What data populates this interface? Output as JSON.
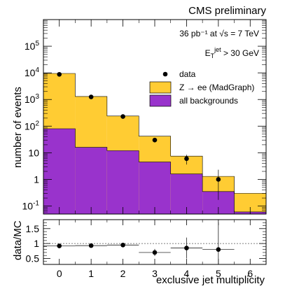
{
  "chart_data": [
    {
      "type": "bar",
      "title": "CMS preliminary",
      "annotations": {
        "lumi": "36 pb⁻¹  at √s = 7 TeV",
        "cut": "E_T^jet > 30 GeV"
      },
      "ylabel": "number of events",
      "xlabel": "",
      "yscale": "log",
      "ylim": [
        0.05,
        1000000
      ],
      "xlim": [
        -0.5,
        6.5
      ],
      "y_ticks": [
        "10⁻¹",
        "1",
        "10",
        "10²",
        "10³",
        "10⁴",
        "10⁵"
      ],
      "x_ticks": [
        "0",
        "1",
        "2",
        "3",
        "4",
        "5",
        "6"
      ],
      "categories": [
        0,
        1,
        2,
        3,
        4,
        5,
        6
      ],
      "series": [
        {
          "name": "Z → ee (MadGraph)",
          "type": "stacked-hist",
          "color": "#ffcc33",
          "values": [
            9500,
            1300,
            240,
            42,
            7.5,
            1.3,
            0.3
          ]
        },
        {
          "name": "all backgrounds",
          "type": "hist",
          "color": "#9933cc",
          "values": [
            80,
            16,
            12,
            4.5,
            1.6,
            0.35,
            0.06
          ]
        },
        {
          "name": "data",
          "type": "points",
          "color": "#000000",
          "values": [
            8800,
            1250,
            230,
            30,
            6,
            1,
            null
          ],
          "yerr_low": [
            95,
            35,
            15,
            5.5,
            2.4,
            0.83,
            null
          ],
          "yerr_high": [
            95,
            35,
            15,
            5.5,
            2.4,
            1.3,
            null
          ]
        }
      ],
      "legend": {
        "placement": "top-right",
        "entries": [
          "data",
          "Z → ee (MadGraph)",
          "all backgrounds"
        ]
      }
    },
    {
      "type": "scatter",
      "ylabel": "data/MC",
      "xlabel": "exclusive jet multiplicity",
      "ylim": [
        0.3,
        1.8
      ],
      "xlim": [
        -0.5,
        6.5
      ],
      "y_ticks": [
        "0.5",
        "1",
        "1.5"
      ],
      "x_ticks": [
        "0",
        "1",
        "2",
        "3",
        "4",
        "5",
        "6"
      ],
      "reference_line": 1,
      "series": [
        {
          "name": "data/MC",
          "x": [
            0,
            1,
            2,
            3,
            4,
            5
          ],
          "values": [
            0.92,
            0.93,
            0.95,
            0.7,
            0.85,
            0.8
          ],
          "yerr": [
            0.02,
            0.03,
            0.06,
            0.12,
            0.35,
            0.9
          ]
        }
      ]
    }
  ]
}
